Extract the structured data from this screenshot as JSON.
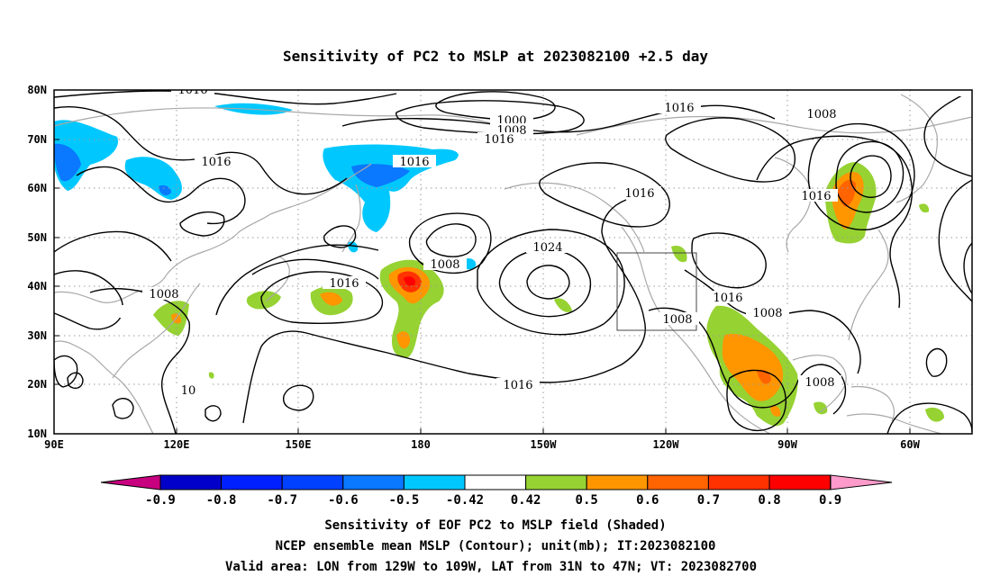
{
  "title": "Sensitivity of PC2 to MSLP at 2023082100 +2.5 day",
  "footer": [
    "Sensitivity of EOF PC2 to MSLP field (Shaded)",
    "NCEP ensemble mean MSLP (Contour); unit(mb); IT:2023082100",
    "Valid area: LON from 129W to 109W, LAT from 31N to 47N; VT: 2023082700"
  ],
  "map": {
    "y_labels": [
      "80N",
      "70N",
      "60N",
      "50N",
      "40N",
      "30N",
      "20N",
      "10N"
    ],
    "x_labels": [
      "90E",
      "120E",
      "150E",
      "180",
      "150W",
      "120W",
      "90W",
      "60W"
    ],
    "contour_labels": [
      "1016",
      "1016",
      "1016",
      "1000",
      "1008",
      "1016",
      "1016",
      "1008",
      "1016",
      "1024",
      "1008",
      "1016",
      "1008",
      "1016",
      "1016",
      "1008",
      "1008",
      "1016",
      "1008",
      "10"
    ],
    "valid_area": {
      "lon_from": "129W",
      "lon_to": "109W",
      "lat_from": "31N",
      "lat_to": "47N"
    }
  },
  "colorbar": {
    "colors": [
      "#0000c8",
      "#0020ff",
      "#0040ff",
      "#0a78ff",
      "#00c8ff",
      "#ffffff",
      "#96d232",
      "#ff9600",
      "#ff6400",
      "#ff3200",
      "#ff0000"
    ],
    "low_arrow_color": "#c8007f",
    "high_arrow_color": "#ff9bcb",
    "labels": [
      "-0.9",
      "-0.8",
      "-0.7",
      "-0.6",
      "-0.5",
      "-0.42",
      "0.42",
      "0.5",
      "0.6",
      "0.7",
      "0.8",
      "0.9"
    ]
  }
}
